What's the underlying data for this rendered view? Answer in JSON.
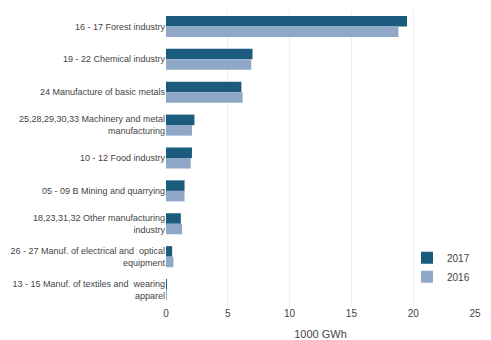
{
  "chart_data": {
    "type": "bar",
    "orientation": "horizontal",
    "categories": [
      "16 - 17 Forest industry",
      "19 - 22 Chemical industry",
      "24 Manufacture of basic metals",
      "25,28,29,30,33 Machinery and metal\nmanufacturing",
      "10 - 12 Food industry",
      "05 - 09 B Mining and quarrying",
      "18,23,31,32 Other manufacturing\nindustry",
      "26 - 27 Manuf. of electrical and  optical\nequipment",
      "13 - 15 Manuf. of textiles and  wearing\napparel"
    ],
    "series": [
      {
        "name": "2017",
        "color": "#1b5c7e",
        "values": [
          19.5,
          7.0,
          6.1,
          2.3,
          2.1,
          1.5,
          1.2,
          0.5,
          0.05
        ]
      },
      {
        "name": "2016",
        "color": "#8fa8c8",
        "values": [
          18.8,
          6.9,
          6.2,
          2.1,
          2.0,
          1.5,
          1.3,
          0.6,
          0.05
        ]
      }
    ],
    "xlabel": "1000 GWh",
    "xlim": [
      0,
      25
    ],
    "xticks": [
      0,
      5,
      10,
      15,
      20,
      25
    ],
    "grid": true,
    "legend": "lower right"
  }
}
